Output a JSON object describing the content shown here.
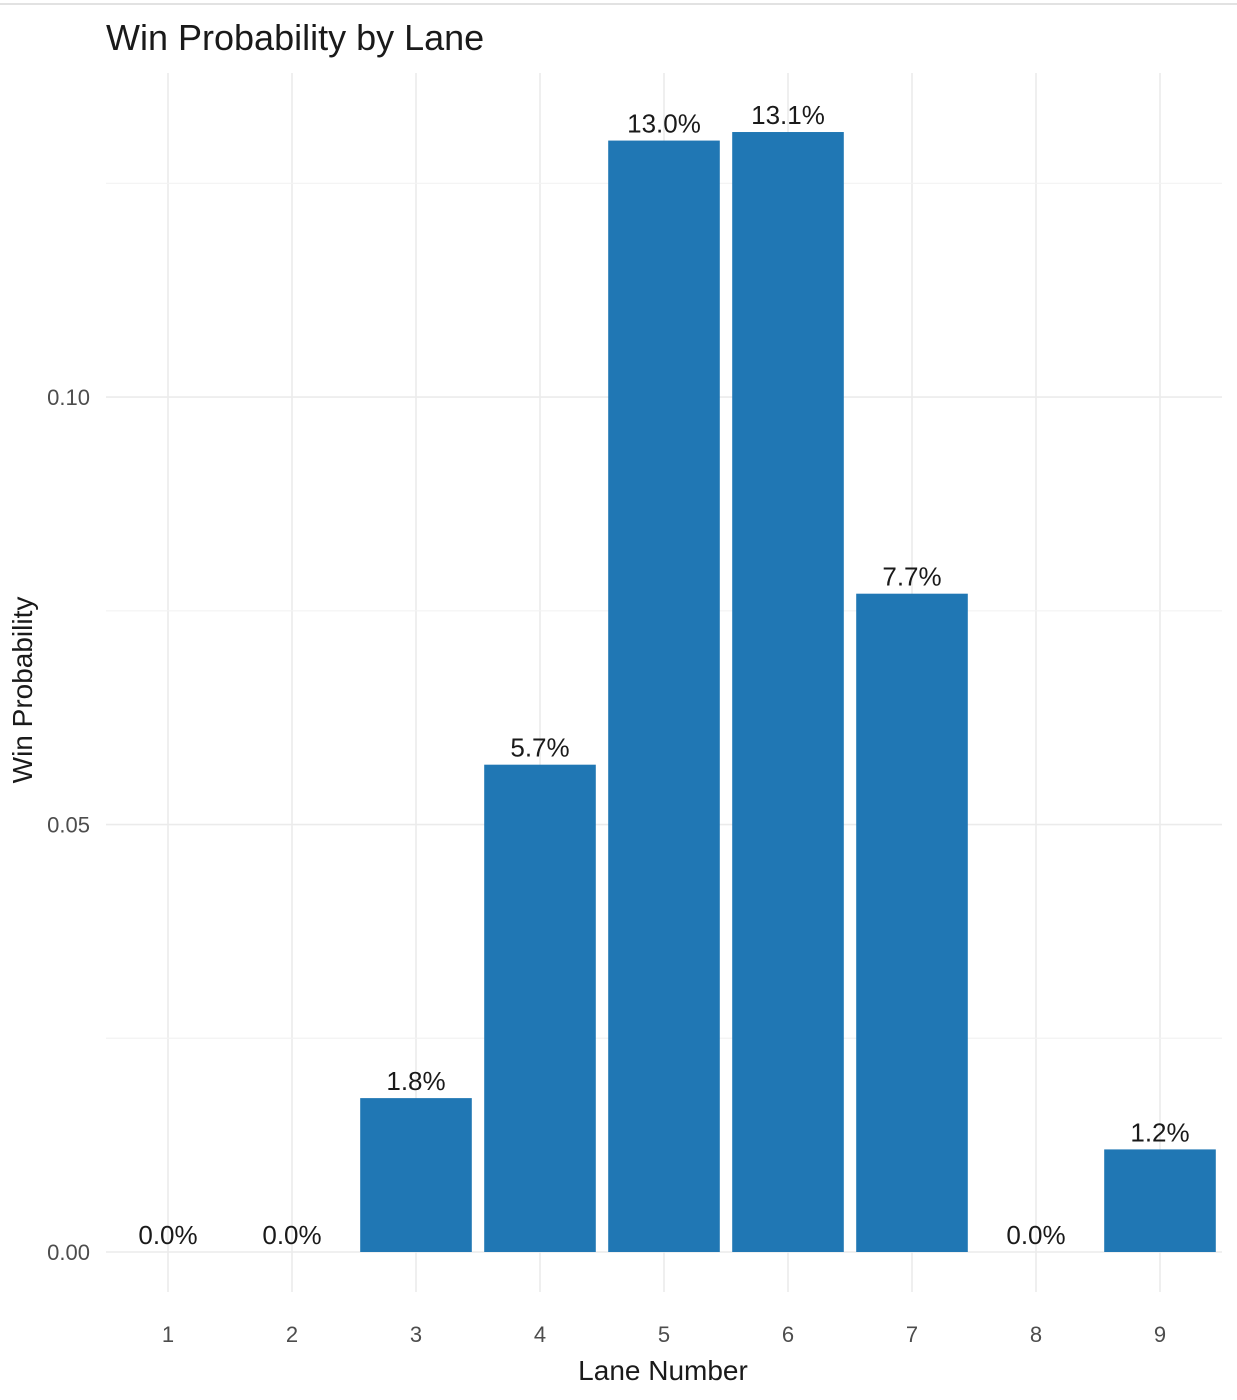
{
  "chart_data": {
    "type": "bar",
    "title": "Win Probability by Lane",
    "xlabel": "Lane Number",
    "ylabel": "Win Probability",
    "categories": [
      "1",
      "2",
      "3",
      "4",
      "5",
      "6",
      "7",
      "8",
      "9"
    ],
    "values": [
      0.0,
      0.0,
      0.018,
      0.057,
      0.13,
      0.131,
      0.077,
      0.0,
      0.012
    ],
    "data_labels": [
      "0.0%",
      "0.0%",
      "1.8%",
      "5.7%",
      "13.0%",
      "13.1%",
      "7.7%",
      "0.0%",
      "1.2%"
    ],
    "y_ticks": [
      0.0,
      0.05,
      0.1
    ],
    "y_tick_labels": [
      "0.00",
      "0.05",
      "0.10"
    ],
    "ylim": [
      0,
      0.1365
    ],
    "grid": true,
    "legend": "none",
    "bar_color": "#2077b4"
  }
}
